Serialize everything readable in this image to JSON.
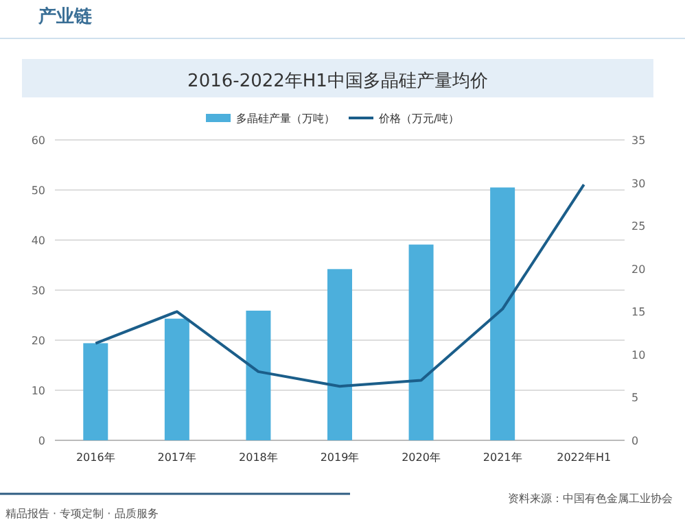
{
  "chart_data": {
    "type": "bar",
    "title": "2016-2022年H1中国多晶硅产量均价",
    "categories": [
      "2016年",
      "2017年",
      "2018年",
      "2019年",
      "2020年",
      "2021年",
      "2022年H1"
    ],
    "series": [
      {
        "name": "多晶硅产量（万吨）",
        "color": "#4cafdc",
        "values": [
          19.4,
          24.3,
          25.9,
          34.2,
          39.1,
          50.5,
          null
        ]
      },
      {
        "name": "价格（万元/吨）",
        "type": "line",
        "axis": "y2",
        "color": "#1b5e8a",
        "values": [
          11.3,
          15.0,
          8.0,
          6.3,
          7.0,
          15.3,
          29.8
        ]
      }
    ],
    "ylim": [
      0,
      60
    ],
    "yticks": [
      0,
      10,
      20,
      30,
      40,
      50,
      60
    ],
    "y2lim": [
      0,
      35
    ],
    "y2ticks": [
      0,
      5,
      10,
      15,
      20,
      25,
      30,
      35
    ],
    "grid": "y",
    "legend": "top",
    "annotations": [
      "产业链",
      "资料来源：中国有色金属工业协会",
      "精品报告 · 专项定制 · 品质服务"
    ]
  }
}
